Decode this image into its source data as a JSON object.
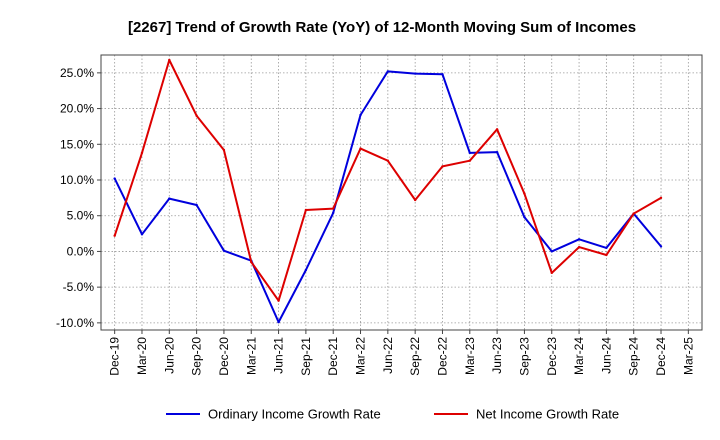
{
  "chart_data": {
    "type": "line",
    "title": "[2267]  Trend of Growth Rate (YoY) of 12-Month Moving Sum of Incomes",
    "xlabel": "",
    "ylabel": "",
    "x": [
      "Dec-19",
      "Mar-20",
      "Jun-20",
      "Sep-20",
      "Dec-20",
      "Mar-21",
      "Jun-21",
      "Sep-21",
      "Dec-21",
      "Mar-22",
      "Jun-22",
      "Sep-22",
      "Dec-22",
      "Mar-23",
      "Jun-23",
      "Sep-23",
      "Dec-23",
      "Mar-24",
      "Jun-24",
      "Sep-24",
      "Dec-24",
      "Mar-25"
    ],
    "ylim": [
      -11,
      27.5
    ],
    "yticks": [
      -10,
      -5,
      0,
      5,
      10,
      15,
      20,
      25
    ],
    "ytick_labels": [
      "-10.0%",
      "-5.0%",
      "0.0%",
      "5.0%",
      "10.0%",
      "15.0%",
      "20.0%",
      "25.0%"
    ],
    "grid": true,
    "legend_position": "bottom",
    "series": [
      {
        "name": "Ordinary Income Growth Rate",
        "color": "#0000dd",
        "values": [
          10.2,
          2.4,
          7.4,
          6.5,
          0.1,
          -1.3,
          -9.9,
          -2.6,
          5.4,
          19.1,
          25.2,
          24.9,
          24.8,
          13.8,
          13.9,
          4.8,
          0.0,
          1.7,
          0.5,
          5.3,
          0.7,
          null
        ]
      },
      {
        "name": "Net Income Growth Rate",
        "color": "#dd0000",
        "values": [
          2.2,
          13.8,
          26.8,
          19.0,
          14.2,
          -1.5,
          -6.9,
          5.8,
          6.0,
          14.4,
          12.7,
          7.2,
          11.9,
          12.7,
          17.1,
          8.1,
          -3.0,
          0.6,
          -0.5,
          5.3,
          7.5,
          null
        ]
      }
    ]
  }
}
